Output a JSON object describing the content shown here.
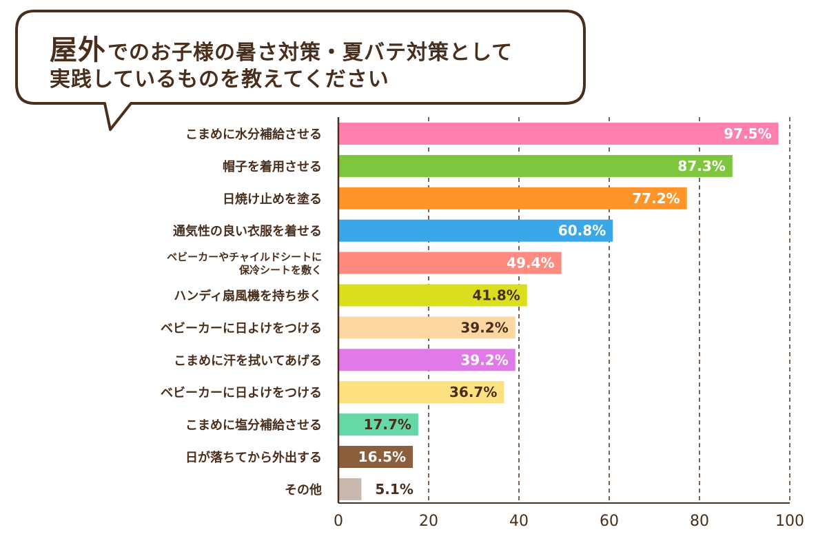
{
  "title": {
    "accent": "屋外",
    "line1_rest": "でのお子様の暑さ対策・夏バテ対策として",
    "line2": "実践しているものを教えてください"
  },
  "chart_data": {
    "type": "bar",
    "orientation": "horizontal",
    "categories": [
      "こまめに水分補給させる",
      "帽子を着用させる",
      "日焼け止めを塗る",
      "通気性の良い衣服を着せる",
      "ベビーカーやチャイルドシートに\n保冷シートを敷く",
      "ハンディ扇風機を持ち歩く",
      "ベビーカーに日よけをつける",
      "こまめに汗を拭いてあげる",
      "ベビーカーに日よけをつける",
      "こまめに塩分補給させる",
      "日が落ちてから外出する",
      "その他"
    ],
    "values": [
      97.5,
      87.3,
      77.2,
      60.8,
      49.4,
      41.8,
      39.2,
      39.2,
      36.7,
      17.7,
      16.5,
      5.1
    ],
    "value_labels": [
      "97.5%",
      "87.3%",
      "77.2%",
      "60.8%",
      "49.4%",
      "41.8%",
      "39.2%",
      "39.2%",
      "36.7%",
      "17.7%",
      "16.5%",
      "5.1%"
    ],
    "colors": [
      "#ff7fae",
      "#7fc63f",
      "#ff9428",
      "#3aa8e8",
      "#ff8a80",
      "#d9df1f",
      "#fdd7a2",
      "#e07ae8",
      "#fde07f",
      "#66d8a8",
      "#8b5e3c",
      "#c9b8ae"
    ],
    "label_colors": [
      "#ffffff",
      "#ffffff",
      "#ffffff",
      "#ffffff",
      "#ffffff",
      "#4a2e1c",
      "#4a2e1c",
      "#ffffff",
      "#4a2e1c",
      "#4a2e1c",
      "#ffffff",
      "#4a2e1c"
    ],
    "label_inside": [
      true,
      true,
      true,
      true,
      true,
      true,
      true,
      true,
      true,
      true,
      true,
      false
    ],
    "xlim": [
      0,
      100
    ],
    "xticks": [
      "0",
      "20",
      "40",
      "60",
      "80",
      "100"
    ],
    "grid": "vertical dashed"
  }
}
